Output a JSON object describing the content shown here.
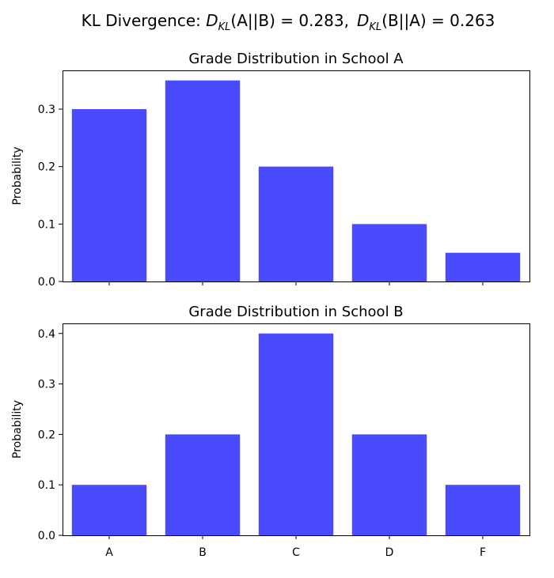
{
  "figure_title": {
    "prefix": "KL Divergence: ",
    "term1": {
      "sym": "D",
      "sub": "KL",
      "args": "(A||B)",
      "value": " = 0.283,"
    },
    "term2": {
      "sym": "D",
      "sub": "KL",
      "args": "(B||A)",
      "value": " = 0.263"
    }
  },
  "chart_data": [
    {
      "type": "bar",
      "title": "Grade Distribution in School A",
      "xlabel": "",
      "ylabel": "Probability",
      "categories": [
        "A",
        "B",
        "C",
        "D",
        "F"
      ],
      "values": [
        0.3,
        0.35,
        0.2,
        0.1,
        0.05
      ],
      "ylim": [
        0,
        0.3675
      ],
      "yticks": [
        0.0,
        0.1,
        0.2,
        0.3
      ],
      "ytick_labels": [
        "0.0",
        "0.1",
        "0.2",
        "0.3"
      ],
      "show_xtick_labels": false,
      "color": "#4a4aff",
      "grid": false
    },
    {
      "type": "bar",
      "title": "Grade Distribution in School B",
      "xlabel": "",
      "ylabel": "Probability",
      "categories": [
        "A",
        "B",
        "C",
        "D",
        "F"
      ],
      "values": [
        0.1,
        0.2,
        0.4,
        0.2,
        0.1
      ],
      "ylim": [
        0,
        0.42
      ],
      "yticks": [
        0.0,
        0.1,
        0.2,
        0.3,
        0.4
      ],
      "ytick_labels": [
        "0.0",
        "0.1",
        "0.2",
        "0.3",
        "0.4"
      ],
      "show_xtick_labels": true,
      "color": "#4a4aff",
      "grid": false
    }
  ]
}
